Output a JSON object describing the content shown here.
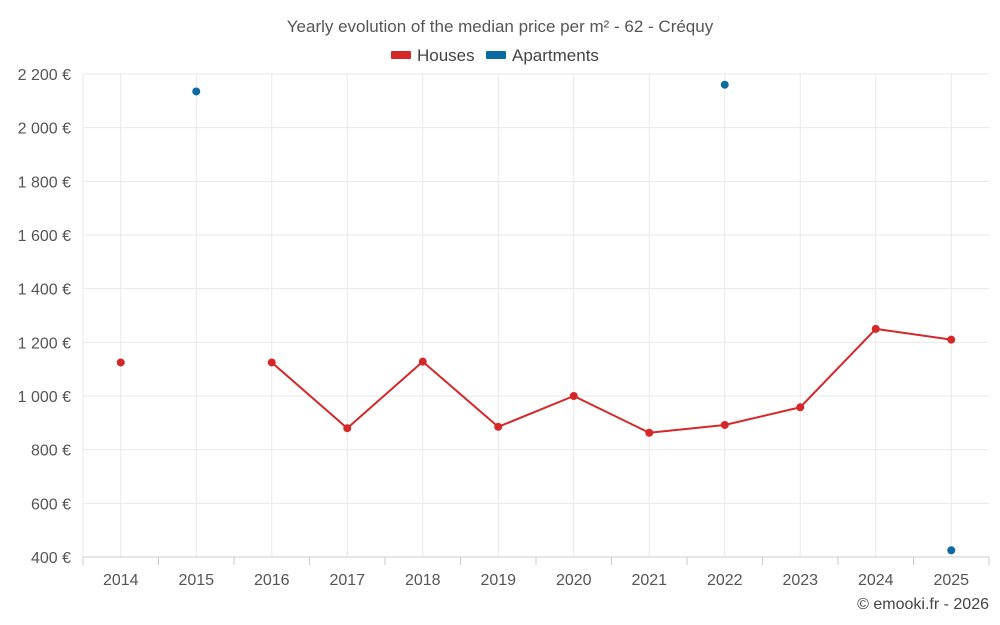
{
  "chart_data": {
    "type": "line",
    "title": "Yearly evolution of the median price per m² - 62 - Créquy",
    "categories": [
      "2014",
      "2015",
      "2016",
      "2017",
      "2018",
      "2019",
      "2020",
      "2021",
      "2022",
      "2023",
      "2024",
      "2025"
    ],
    "series": [
      {
        "name": "Houses",
        "color": "#d62728",
        "values": [
          1125,
          null,
          1125,
          880,
          1128,
          885,
          1000,
          863,
          892,
          958,
          1250,
          1210
        ]
      },
      {
        "name": "Apartments",
        "color": "#0b6aa2",
        "values": [
          null,
          2135,
          null,
          null,
          null,
          null,
          null,
          null,
          2160,
          null,
          null,
          425
        ]
      }
    ],
    "yaxis": {
      "min": 400,
      "max": 2200,
      "ticks": [
        400,
        600,
        800,
        1000,
        1200,
        1400,
        1600,
        1800,
        2000,
        2200
      ],
      "tick_labels": [
        "400 €",
        "600 €",
        "800 €",
        "1 000 €",
        "1 200 €",
        "1 400 €",
        "1 600 €",
        "1 800 €",
        "2 000 €",
        "2 200 €"
      ]
    },
    "grid": true,
    "legend_position": "top-center",
    "credit": "© emooki.fr - 2026"
  }
}
